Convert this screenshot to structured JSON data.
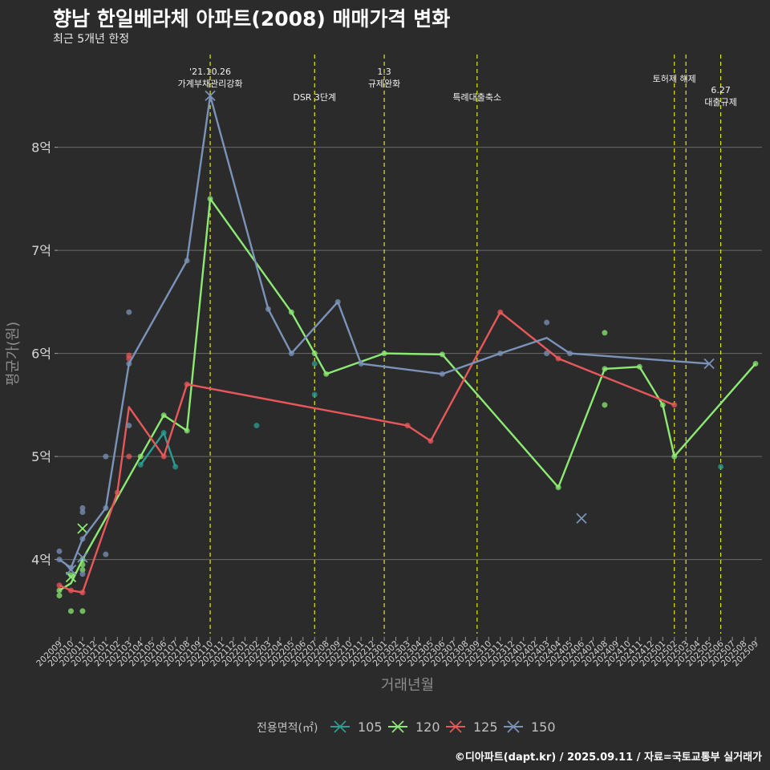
{
  "header": {
    "title": "향남 한일베라체 아파트(2008) 매매가격 변화",
    "subtitle": "최근 5개년 한정",
    "caption": "©디아파트(dapt.kr) / 2025.09.11 / 자료=국토교통부 실거래가"
  },
  "chart_data": {
    "type": "line",
    "title": "향남 한일베라체 아파트(2008) 매매가격 변화",
    "subtitle": "최근 5개년 한정",
    "xlabel": "거래년월",
    "ylabel": "평균가(원)",
    "ylim": [
      3.25,
      8.9
    ],
    "yticks": [
      {
        "value": 4,
        "label": "4억"
      },
      {
        "value": 5,
        "label": "5억"
      },
      {
        "value": 6,
        "label": "6억"
      },
      {
        "value": 7,
        "label": "7억"
      },
      {
        "value": 8,
        "label": "8억"
      }
    ],
    "x_categories": [
      "202009",
      "202010",
      "202011",
      "202012",
      "202101",
      "202102",
      "202103",
      "202104",
      "202105",
      "202106",
      "202107",
      "202108",
      "202109",
      "202110",
      "202111",
      "202112",
      "202201",
      "202202",
      "202203",
      "202204",
      "202205",
      "202206",
      "202207",
      "202208",
      "202209",
      "202210",
      "202211",
      "202212",
      "202301",
      "202302",
      "202303",
      "202304",
      "202305",
      "202306",
      "202307",
      "202308",
      "202309",
      "202310",
      "202311",
      "202312",
      "202401",
      "202402",
      "202403",
      "202404",
      "202405",
      "202406",
      "202407",
      "202408",
      "202409",
      "202410",
      "202411",
      "202412",
      "202501",
      "202502",
      "202503",
      "202504",
      "202505",
      "202506",
      "202507",
      "202508",
      "202509"
    ],
    "legend_title": "전용면적(㎡)",
    "legend_position": "bottom",
    "events": [
      {
        "x": "202110",
        "label": "'21.10.26\n가계부채관리강화",
        "row": "top"
      },
      {
        "x": "202207",
        "label": "DSR 3단계",
        "row": "bottom"
      },
      {
        "x": "202301",
        "label": "1.3\n규제완화",
        "row": "top"
      },
      {
        "x": "202309",
        "label": "특례대출축소",
        "row": "bottom"
      },
      {
        "x": "202502",
        "label": "토허제 해제",
        "row": "middle"
      },
      {
        "x": "202503",
        "label": "",
        "row": "none"
      },
      {
        "x": "202506",
        "label": "6.27\n대출규제",
        "row": "lower"
      }
    ],
    "series": [
      {
        "name": "105",
        "color": "#2a9d94",
        "line": [
          [
            "202104",
            4.92
          ],
          [
            "202106",
            5.23
          ],
          [
            "202107",
            4.9
          ]
        ],
        "points": [
          [
            "202104",
            4.92
          ],
          [
            "202106",
            5.23
          ],
          [
            "202107",
            4.9
          ],
          [
            "202202",
            5.3
          ],
          [
            "202207",
            5.9
          ],
          [
            "202207",
            5.6
          ],
          [
            "202506",
            4.9
          ]
        ],
        "x_markers": []
      },
      {
        "name": "120",
        "color": "#8cea73",
        "line": [
          [
            "202009",
            3.7
          ],
          [
            "202010",
            3.77
          ],
          [
            "202011",
            4.0
          ],
          [
            "202106",
            5.4
          ],
          [
            "202108",
            5.25
          ],
          [
            "202110",
            7.5
          ],
          [
            "202205",
            6.4
          ],
          [
            "202207",
            6.0
          ],
          [
            "202208",
            5.8
          ],
          [
            "202301",
            6.0
          ],
          [
            "202306",
            5.99
          ],
          [
            "202404",
            4.7
          ],
          [
            "202408",
            5.85
          ],
          [
            "202411",
            5.87
          ],
          [
            "202501",
            5.5
          ],
          [
            "202502",
            5.0
          ],
          [
            "202509",
            5.9
          ]
        ],
        "points": [
          [
            "202009",
            3.65
          ],
          [
            "202009",
            3.7
          ],
          [
            "202010",
            3.5
          ],
          [
            "202010",
            3.85
          ],
          [
            "202011",
            3.5
          ],
          [
            "202011",
            3.9
          ],
          [
            "202011",
            3.95
          ],
          [
            "202011",
            4.0
          ],
          [
            "202104",
            5.0
          ],
          [
            "202106",
            5.4
          ],
          [
            "202108",
            5.25
          ],
          [
            "202110",
            7.5
          ],
          [
            "202205",
            6.4
          ],
          [
            "202207",
            6.0
          ],
          [
            "202208",
            5.8
          ],
          [
            "202301",
            6.0
          ],
          [
            "202306",
            5.99
          ],
          [
            "202404",
            4.7
          ],
          [
            "202408",
            6.2
          ],
          [
            "202408",
            5.5
          ],
          [
            "202408",
            5.85
          ],
          [
            "202411",
            5.87
          ],
          [
            "202501",
            5.5
          ],
          [
            "202502",
            5.0
          ],
          [
            "202509",
            5.9
          ]
        ],
        "x_markers": [
          [
            "202010",
            3.83
          ],
          [
            "202011",
            4.3
          ]
        ]
      },
      {
        "name": "125",
        "color": "#e8575a",
        "line": [
          [
            "202009",
            3.75
          ],
          [
            "202010",
            3.7
          ],
          [
            "202011",
            3.68
          ],
          [
            "202102",
            4.65
          ],
          [
            "202103",
            5.48
          ],
          [
            "202106",
            5.0
          ],
          [
            "202108",
            5.7
          ],
          [
            "202303",
            5.3
          ],
          [
            "202305",
            5.15
          ],
          [
            "202311",
            6.4
          ],
          [
            "202404",
            5.95
          ],
          [
            "202502",
            5.5
          ]
        ],
        "points": [
          [
            "202009",
            3.75
          ],
          [
            "202010",
            3.7
          ],
          [
            "202011",
            3.68
          ],
          [
            "202102",
            4.65
          ],
          [
            "202103",
            5.98
          ],
          [
            "202103",
            5.95
          ],
          [
            "202103",
            5.0
          ],
          [
            "202106",
            5.0
          ],
          [
            "202108",
            5.7
          ],
          [
            "202303",
            5.3
          ],
          [
            "202305",
            5.15
          ],
          [
            "202311",
            6.4
          ],
          [
            "202404",
            5.95
          ],
          [
            "202502",
            5.5
          ]
        ],
        "x_markers": []
      },
      {
        "name": "150",
        "color": "#7b93b8",
        "line": [
          [
            "202009",
            4.0
          ],
          [
            "202010",
            3.92
          ],
          [
            "202011",
            4.2
          ],
          [
            "202101",
            4.5
          ],
          [
            "202103",
            5.9
          ],
          [
            "202108",
            6.9
          ],
          [
            "202110",
            8.5
          ],
          [
            "202203",
            6.43
          ],
          [
            "202205",
            6.0
          ],
          [
            "202209",
            6.5
          ],
          [
            "202211",
            5.9
          ],
          [
            "202306",
            5.8
          ],
          [
            "202311",
            6.0
          ],
          [
            "202403",
            6.15
          ],
          [
            "202405",
            6.0
          ],
          [
            "202505",
            5.9
          ]
        ],
        "points": [
          [
            "202009",
            4.08
          ],
          [
            "202009",
            4.0
          ],
          [
            "202010",
            3.92
          ],
          [
            "202011",
            4.5
          ],
          [
            "202011",
            4.46
          ],
          [
            "202011",
            4.2
          ],
          [
            "202011",
            3.86
          ],
          [
            "202101",
            5.0
          ],
          [
            "202101",
            4.5
          ],
          [
            "202101",
            4.05
          ],
          [
            "202103",
            6.4
          ],
          [
            "202103",
            5.3
          ],
          [
            "202103",
            5.9
          ],
          [
            "202108",
            6.9
          ],
          [
            "202203",
            6.43
          ],
          [
            "202205",
            6.0
          ],
          [
            "202209",
            6.5
          ],
          [
            "202211",
            5.9
          ],
          [
            "202306",
            5.8
          ],
          [
            "202311",
            6.0
          ],
          [
            "202403",
            6.3
          ],
          [
            "202403",
            6.0
          ],
          [
            "202405",
            6.0
          ]
        ],
        "x_markers": [
          [
            "202010",
            3.9
          ],
          [
            "202011",
            4.02
          ],
          [
            "202110",
            8.5
          ],
          [
            "202406",
            4.4
          ],
          [
            "202505",
            5.9
          ]
        ]
      }
    ]
  }
}
